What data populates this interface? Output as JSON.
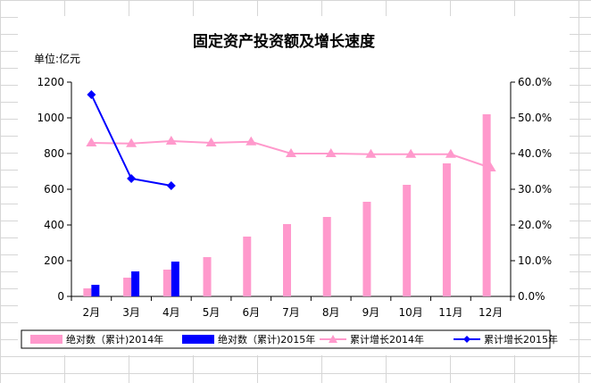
{
  "chart_data": {
    "type": "bar",
    "title": "固定资产投资额及增长速度",
    "unit_label": "单位:亿元",
    "categories": [
      "2月",
      "3月",
      "4月",
      "5月",
      "6月",
      "7月",
      "8月",
      "9月",
      "10月",
      "11月",
      "12月"
    ],
    "y_left": {
      "min": 0,
      "max": 1200,
      "ticks": [
        "0",
        "200",
        "400",
        "600",
        "800",
        "1000",
        "1200"
      ]
    },
    "y_right": {
      "min": 0,
      "max": 60,
      "ticks": [
        "0.0%",
        "10.0%",
        "20.0%",
        "30.0%",
        "40.0%",
        "50.0%",
        "60.0%"
      ]
    },
    "grid": false,
    "legend_position": "bottom",
    "series": [
      {
        "name": "绝对数（累计)2014年",
        "kind": "bar",
        "axis": "left",
        "color": "#ff99cc",
        "values": [
          45,
          105,
          150,
          220,
          335,
          405,
          445,
          530,
          625,
          745,
          1020
        ]
      },
      {
        "name": "绝对数（累计)2015年",
        "kind": "bar",
        "axis": "left",
        "color": "#0000ff",
        "values": [
          65,
          140,
          195,
          null,
          null,
          null,
          null,
          null,
          null,
          null,
          null
        ]
      },
      {
        "name": "累计增长2014年",
        "kind": "line",
        "marker": "triangle",
        "axis": "right",
        "color": "#ff99cc",
        "values": [
          43.0,
          42.8,
          43.5,
          43.0,
          43.3,
          40.0,
          40.0,
          39.8,
          39.8,
          39.8,
          36.0
        ]
      },
      {
        "name": "累计增长2015年",
        "kind": "line",
        "marker": "diamond",
        "axis": "right",
        "color": "#0000ff",
        "values": [
          56.5,
          33.0,
          31.0,
          null,
          null,
          null,
          null,
          null,
          null,
          null,
          null
        ]
      }
    ]
  }
}
